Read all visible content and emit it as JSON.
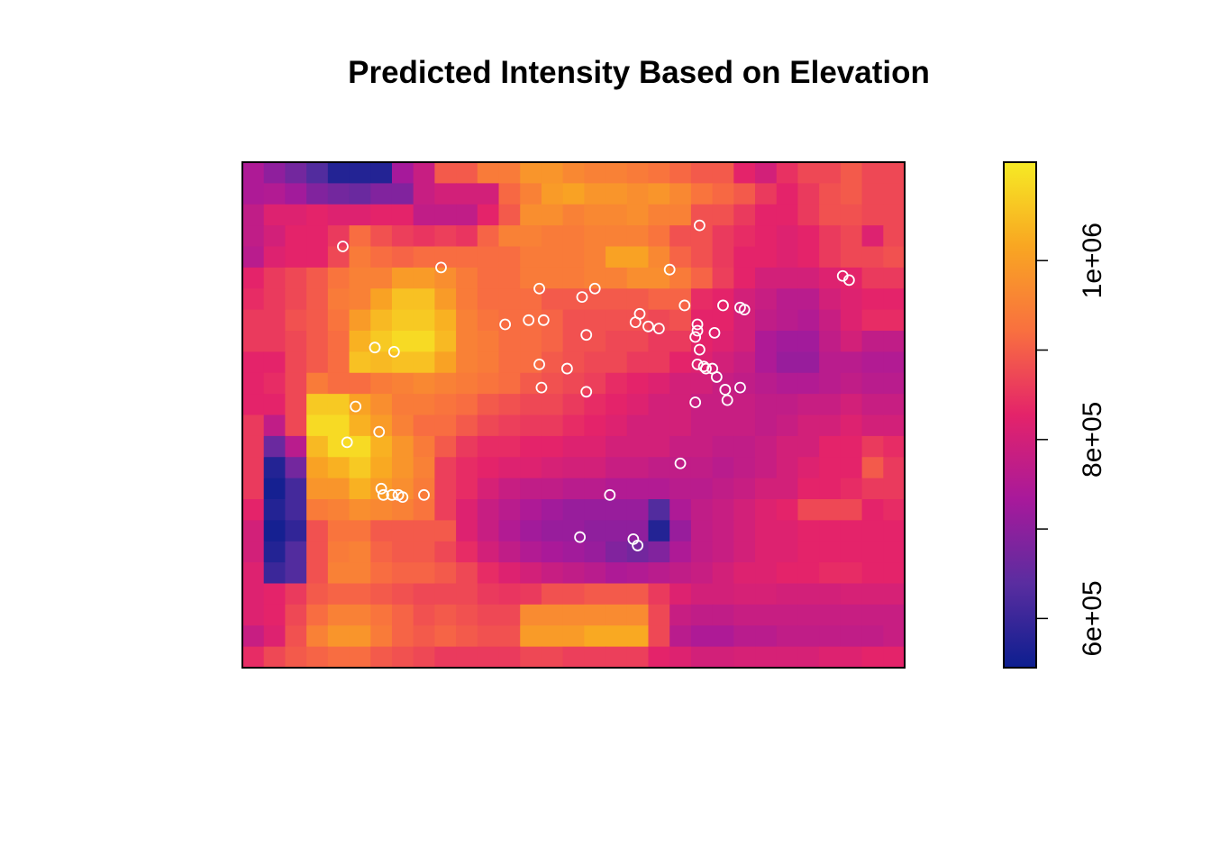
{
  "chart_data": {
    "type": "heatmap",
    "title": "Predicted Intensity Based on Elevation",
    "xlabel": "",
    "ylabel": "",
    "grid_cols": 31,
    "grid_rows": 24,
    "colorbar": {
      "min": 545000,
      "max": 1110000,
      "ticks": [
        600000,
        700000,
        800000,
        900000,
        1000000
      ],
      "tick_labels": [
        "6e+05",
        "",
        "8e+05",
        "",
        "1e+06"
      ],
      "colors": [
        "#0C1E8F",
        "#5A2DA0",
        "#A8199B",
        "#E4236A",
        "#F9703F",
        "#F9A622",
        "#F6EA24"
      ],
      "placement": "right"
    },
    "intensity": [
      [
        0.35,
        0.28,
        0.22,
        0.15,
        0.05,
        0.05,
        0.05,
        0.33,
        0.42,
        0.62,
        0.62,
        0.7,
        0.7,
        0.78,
        0.78,
        0.74,
        0.72,
        0.72,
        0.7,
        0.68,
        0.65,
        0.62,
        0.62,
        0.5,
        0.45,
        0.53,
        0.58,
        0.58,
        0.62,
        0.58,
        0.58
      ],
      [
        0.35,
        0.36,
        0.32,
        0.25,
        0.22,
        0.2,
        0.25,
        0.25,
        0.42,
        0.45,
        0.45,
        0.45,
        0.65,
        0.72,
        0.8,
        0.82,
        0.78,
        0.78,
        0.76,
        0.78,
        0.74,
        0.68,
        0.65,
        0.62,
        0.55,
        0.5,
        0.55,
        0.6,
        0.62,
        0.58,
        0.58
      ],
      [
        0.4,
        0.48,
        0.48,
        0.5,
        0.48,
        0.48,
        0.5,
        0.5,
        0.4,
        0.4,
        0.4,
        0.5,
        0.62,
        0.76,
        0.76,
        0.72,
        0.74,
        0.74,
        0.76,
        0.72,
        0.72,
        0.6,
        0.6,
        0.55,
        0.5,
        0.5,
        0.55,
        0.6,
        0.6,
        0.58,
        0.58
      ],
      [
        0.4,
        0.45,
        0.5,
        0.5,
        0.55,
        0.66,
        0.6,
        0.56,
        0.54,
        0.56,
        0.54,
        0.64,
        0.72,
        0.72,
        0.7,
        0.7,
        0.72,
        0.72,
        0.72,
        0.68,
        0.6,
        0.6,
        0.55,
        0.52,
        0.5,
        0.48,
        0.5,
        0.55,
        0.58,
        0.48,
        0.58
      ],
      [
        0.38,
        0.48,
        0.5,
        0.5,
        0.58,
        0.7,
        0.66,
        0.64,
        0.66,
        0.66,
        0.66,
        0.66,
        0.66,
        0.7,
        0.7,
        0.7,
        0.72,
        0.82,
        0.82,
        0.74,
        0.64,
        0.6,
        0.55,
        0.5,
        0.5,
        0.48,
        0.5,
        0.55,
        0.58,
        0.58,
        0.6
      ],
      [
        0.5,
        0.55,
        0.58,
        0.62,
        0.68,
        0.72,
        0.72,
        0.8,
        0.8,
        0.76,
        0.7,
        0.66,
        0.66,
        0.7,
        0.7,
        0.7,
        0.72,
        0.72,
        0.76,
        0.76,
        0.7,
        0.64,
        0.56,
        0.5,
        0.45,
        0.45,
        0.45,
        0.48,
        0.5,
        0.55,
        0.55
      ],
      [
        0.52,
        0.55,
        0.58,
        0.62,
        0.7,
        0.72,
        0.82,
        0.9,
        0.9,
        0.8,
        0.7,
        0.66,
        0.66,
        0.66,
        0.62,
        0.62,
        0.62,
        0.62,
        0.62,
        0.64,
        0.64,
        0.52,
        0.5,
        0.45,
        0.42,
        0.38,
        0.38,
        0.45,
        0.48,
        0.5,
        0.5
      ],
      [
        0.55,
        0.55,
        0.6,
        0.62,
        0.68,
        0.8,
        0.88,
        0.92,
        0.92,
        0.86,
        0.72,
        0.68,
        0.66,
        0.66,
        0.64,
        0.6,
        0.6,
        0.6,
        0.6,
        0.58,
        0.6,
        0.5,
        0.5,
        0.45,
        0.4,
        0.38,
        0.36,
        0.42,
        0.48,
        0.52,
        0.52
      ],
      [
        0.55,
        0.55,
        0.58,
        0.62,
        0.66,
        0.86,
        0.92,
        0.96,
        0.96,
        0.88,
        0.72,
        0.7,
        0.66,
        0.66,
        0.64,
        0.6,
        0.6,
        0.58,
        0.58,
        0.55,
        0.55,
        0.5,
        0.48,
        0.45,
        0.35,
        0.32,
        0.32,
        0.4,
        0.45,
        0.4,
        0.4
      ],
      [
        0.5,
        0.5,
        0.58,
        0.62,
        0.66,
        0.9,
        0.88,
        0.9,
        0.9,
        0.82,
        0.72,
        0.7,
        0.66,
        0.66,
        0.62,
        0.6,
        0.58,
        0.58,
        0.55,
        0.55,
        0.5,
        0.48,
        0.45,
        0.42,
        0.35,
        0.3,
        0.3,
        0.38,
        0.38,
        0.36,
        0.36
      ],
      [
        0.5,
        0.52,
        0.58,
        0.7,
        0.66,
        0.66,
        0.7,
        0.72,
        0.74,
        0.72,
        0.7,
        0.68,
        0.66,
        0.62,
        0.6,
        0.58,
        0.56,
        0.52,
        0.5,
        0.48,
        0.45,
        0.45,
        0.42,
        0.4,
        0.38,
        0.36,
        0.36,
        0.38,
        0.4,
        0.38,
        0.38
      ],
      [
        0.5,
        0.5,
        0.58,
        0.92,
        0.92,
        0.82,
        0.76,
        0.7,
        0.7,
        0.68,
        0.66,
        0.62,
        0.6,
        0.58,
        0.58,
        0.55,
        0.52,
        0.5,
        0.48,
        0.45,
        0.45,
        0.42,
        0.42,
        0.42,
        0.4,
        0.4,
        0.42,
        0.42,
        0.45,
        0.42,
        0.42
      ],
      [
        0.55,
        0.4,
        0.58,
        0.96,
        0.96,
        0.86,
        0.8,
        0.72,
        0.66,
        0.66,
        0.62,
        0.58,
        0.56,
        0.55,
        0.55,
        0.52,
        0.5,
        0.48,
        0.45,
        0.45,
        0.45,
        0.42,
        0.42,
        0.42,
        0.4,
        0.42,
        0.45,
        0.45,
        0.48,
        0.45,
        0.45
      ],
      [
        0.55,
        0.2,
        0.38,
        0.88,
        0.96,
        0.96,
        0.86,
        0.78,
        0.7,
        0.62,
        0.55,
        0.52,
        0.52,
        0.5,
        0.5,
        0.48,
        0.48,
        0.45,
        0.45,
        0.45,
        0.42,
        0.42,
        0.4,
        0.4,
        0.42,
        0.45,
        0.45,
        0.5,
        0.5,
        0.55,
        0.52
      ],
      [
        0.55,
        0.05,
        0.22,
        0.82,
        0.86,
        0.92,
        0.84,
        0.78,
        0.72,
        0.56,
        0.52,
        0.5,
        0.48,
        0.48,
        0.46,
        0.45,
        0.45,
        0.42,
        0.42,
        0.4,
        0.4,
        0.4,
        0.38,
        0.4,
        0.42,
        0.45,
        0.48,
        0.5,
        0.5,
        0.62,
        0.55
      ],
      [
        0.55,
        0.02,
        0.12,
        0.78,
        0.78,
        0.86,
        0.8,
        0.76,
        0.7,
        0.56,
        0.52,
        0.46,
        0.42,
        0.4,
        0.4,
        0.38,
        0.38,
        0.36,
        0.36,
        0.36,
        0.38,
        0.38,
        0.4,
        0.42,
        0.45,
        0.45,
        0.5,
        0.5,
        0.52,
        0.55,
        0.55
      ],
      [
        0.5,
        0.05,
        0.12,
        0.7,
        0.72,
        0.76,
        0.74,
        0.72,
        0.68,
        0.56,
        0.48,
        0.42,
        0.38,
        0.35,
        0.32,
        0.3,
        0.3,
        0.3,
        0.3,
        0.15,
        0.35,
        0.4,
        0.42,
        0.45,
        0.48,
        0.5,
        0.58,
        0.58,
        0.58,
        0.5,
        0.52
      ],
      [
        0.45,
        0.02,
        0.08,
        0.6,
        0.68,
        0.68,
        0.62,
        0.62,
        0.62,
        0.62,
        0.48,
        0.42,
        0.36,
        0.32,
        0.3,
        0.3,
        0.28,
        0.28,
        0.28,
        0.05,
        0.3,
        0.4,
        0.42,
        0.45,
        0.48,
        0.48,
        0.5,
        0.5,
        0.5,
        0.5,
        0.5
      ],
      [
        0.45,
        0.05,
        0.15,
        0.6,
        0.7,
        0.72,
        0.64,
        0.62,
        0.62,
        0.58,
        0.52,
        0.45,
        0.4,
        0.36,
        0.34,
        0.32,
        0.3,
        0.25,
        0.22,
        0.25,
        0.35,
        0.4,
        0.42,
        0.45,
        0.48,
        0.48,
        0.5,
        0.5,
        0.5,
        0.5,
        0.5
      ],
      [
        0.48,
        0.1,
        0.15,
        0.6,
        0.72,
        0.72,
        0.66,
        0.64,
        0.64,
        0.62,
        0.58,
        0.52,
        0.48,
        0.45,
        0.42,
        0.4,
        0.38,
        0.35,
        0.36,
        0.38,
        0.4,
        0.42,
        0.45,
        0.48,
        0.48,
        0.5,
        0.5,
        0.52,
        0.52,
        0.5,
        0.5
      ],
      [
        0.48,
        0.5,
        0.55,
        0.62,
        0.64,
        0.64,
        0.62,
        0.6,
        0.58,
        0.58,
        0.58,
        0.55,
        0.54,
        0.55,
        0.6,
        0.6,
        0.62,
        0.62,
        0.62,
        0.55,
        0.48,
        0.45,
        0.45,
        0.46,
        0.46,
        0.45,
        0.45,
        0.45,
        0.46,
        0.46,
        0.46
      ],
      [
        0.48,
        0.5,
        0.58,
        0.66,
        0.72,
        0.72,
        0.68,
        0.64,
        0.6,
        0.62,
        0.6,
        0.58,
        0.58,
        0.75,
        0.75,
        0.75,
        0.75,
        0.75,
        0.75,
        0.58,
        0.42,
        0.4,
        0.4,
        0.42,
        0.42,
        0.42,
        0.42,
        0.42,
        0.42,
        0.42,
        0.42
      ],
      [
        0.42,
        0.48,
        0.6,
        0.72,
        0.78,
        0.78,
        0.7,
        0.64,
        0.62,
        0.64,
        0.62,
        0.6,
        0.6,
        0.8,
        0.8,
        0.8,
        0.84,
        0.84,
        0.84,
        0.58,
        0.38,
        0.35,
        0.35,
        0.38,
        0.38,
        0.4,
        0.4,
        0.4,
        0.4,
        0.4,
        0.42
      ],
      [
        0.52,
        0.58,
        0.62,
        0.64,
        0.66,
        0.66,
        0.62,
        0.6,
        0.58,
        0.55,
        0.55,
        0.55,
        0.55,
        0.58,
        0.58,
        0.56,
        0.56,
        0.56,
        0.56,
        0.5,
        0.48,
        0.45,
        0.45,
        0.46,
        0.46,
        0.46,
        0.46,
        0.48,
        0.48,
        0.5,
        0.5
      ]
    ],
    "points": [
      [
        4.7,
        4.0
      ],
      [
        21.4,
        3.0
      ],
      [
        20.0,
        5.1
      ],
      [
        9.3,
        5.0
      ],
      [
        13.9,
        6.0
      ],
      [
        16.5,
        6.0
      ],
      [
        15.9,
        6.4
      ],
      [
        20.7,
        6.8
      ],
      [
        22.5,
        6.8
      ],
      [
        23.3,
        6.9
      ],
      [
        23.5,
        7.0
      ],
      [
        18.6,
        7.2
      ],
      [
        18.4,
        7.6
      ],
      [
        19.0,
        7.8
      ],
      [
        19.5,
        7.9
      ],
      [
        13.4,
        7.5
      ],
      [
        14.1,
        7.5
      ],
      [
        12.3,
        7.7
      ],
      [
        21.3,
        7.7
      ],
      [
        21.3,
        8.0
      ],
      [
        22.1,
        8.1
      ],
      [
        16.1,
        8.2
      ],
      [
        21.2,
        8.3
      ],
      [
        6.2,
        8.8
      ],
      [
        7.1,
        9.0
      ],
      [
        21.4,
        8.9
      ],
      [
        13.9,
        9.6
      ],
      [
        15.2,
        9.8
      ],
      [
        21.3,
        9.6
      ],
      [
        21.6,
        9.7
      ],
      [
        21.7,
        9.8
      ],
      [
        22.0,
        9.8
      ],
      [
        22.2,
        10.2
      ],
      [
        14.0,
        10.7
      ],
      [
        16.1,
        10.9
      ],
      [
        22.6,
        10.8
      ],
      [
        23.3,
        10.7
      ],
      [
        22.7,
        11.3
      ],
      [
        21.2,
        11.4
      ],
      [
        5.3,
        11.6
      ],
      [
        6.4,
        12.8
      ],
      [
        4.9,
        13.3
      ],
      [
        20.5,
        14.3
      ],
      [
        6.5,
        15.5
      ],
      [
        6.6,
        15.8
      ],
      [
        7.0,
        15.8
      ],
      [
        7.3,
        15.8
      ],
      [
        7.5,
        15.9
      ],
      [
        8.5,
        15.8
      ],
      [
        17.2,
        15.8
      ],
      [
        15.8,
        17.8
      ],
      [
        18.3,
        17.9
      ],
      [
        18.5,
        18.2
      ],
      [
        28.1,
        5.4
      ],
      [
        28.4,
        5.6
      ]
    ]
  }
}
